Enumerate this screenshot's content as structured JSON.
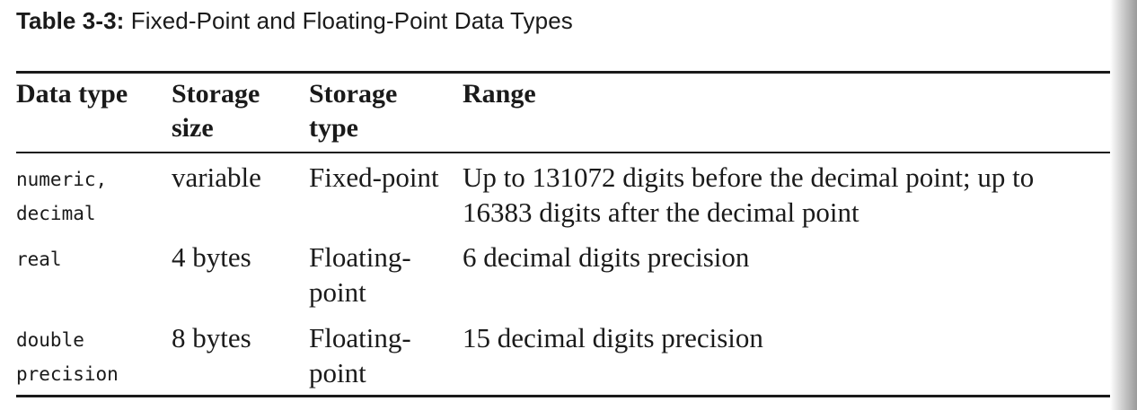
{
  "caption": {
    "label": "Table 3-3:",
    "title": " Fixed-Point and Floating-Point Data Types"
  },
  "table": {
    "headers": {
      "data_type": [
        "Data type"
      ],
      "storage_size": [
        "Storage",
        "size"
      ],
      "storage_type": [
        "Storage",
        "type"
      ],
      "range": [
        "Range"
      ]
    },
    "rows": [
      {
        "data_type": [
          "numeric,",
          "decimal"
        ],
        "storage_size": [
          "variable"
        ],
        "storage_type": [
          "Fixed-point"
        ],
        "range": [
          "Up to 131072 digits before the decimal point; up to",
          "16383 digits after the decimal point"
        ]
      },
      {
        "data_type": [
          "real"
        ],
        "storage_size": [
          "4 bytes"
        ],
        "storage_type": [
          "Floating-",
          "point"
        ],
        "range": [
          "6 decimal digits precision"
        ]
      },
      {
        "data_type": [
          "double",
          "precision"
        ],
        "storage_size": [
          "8 bytes"
        ],
        "storage_type": [
          "Floating-",
          "point"
        ],
        "range": [
          "15 decimal digits precision"
        ]
      }
    ]
  }
}
